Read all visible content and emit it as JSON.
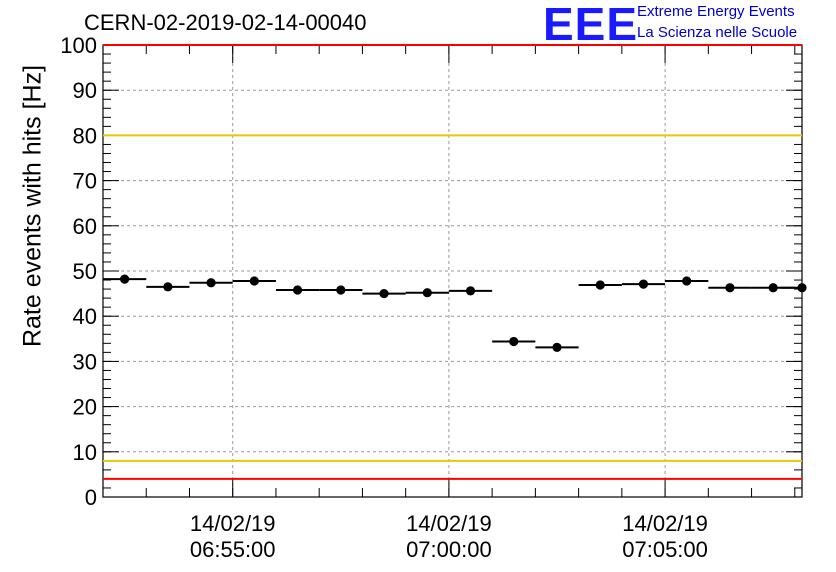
{
  "title": "CERN-02-2019-02-14-00040",
  "logo": {
    "mark": "EEE",
    "line1": "Extreme Energy Events",
    "line2": "La Scienza nelle Scuole"
  },
  "chart_data": {
    "type": "scatter",
    "ylabel": "Rate events with hits [Hz]",
    "ylim": [
      0,
      100
    ],
    "y_ticks": [
      0,
      10,
      20,
      30,
      40,
      50,
      60,
      70,
      80,
      90,
      100
    ],
    "xlim": [
      "06:52:00",
      "07:08:10"
    ],
    "x_ticks": [
      {
        "date": "14/02/19",
        "time": "06:55:00"
      },
      {
        "date": "14/02/19",
        "time": "07:00:00"
      },
      {
        "date": "14/02/19",
        "time": "07:05:00"
      }
    ],
    "grid": true,
    "bin_width_seconds": 60,
    "series": [
      {
        "x": [
          "06:52:30",
          "06:53:30",
          "06:54:30",
          "06:55:30",
          "06:56:30",
          "06:57:30",
          "06:58:30",
          "06:59:30",
          "07:00:30",
          "07:01:30",
          "07:02:30",
          "07:03:30",
          "07:04:30",
          "07:05:30",
          "07:06:30",
          "07:07:30",
          "07:08:10"
        ],
        "values": [
          48.2,
          46.5,
          47.4,
          47.8,
          45.8,
          45.8,
          45.0,
          45.2,
          45.6,
          34.4,
          33.1,
          46.9,
          47.1,
          47.8,
          46.3,
          46.3,
          46.3
        ],
        "color": "#000000"
      }
    ],
    "reference_lines": [
      {
        "y": 100,
        "color": "#ff0000"
      },
      {
        "y": 80,
        "color": "#e8c800"
      },
      {
        "y": 8,
        "color": "#e8c800"
      },
      {
        "y": 4,
        "color": "#ff0000"
      }
    ]
  }
}
